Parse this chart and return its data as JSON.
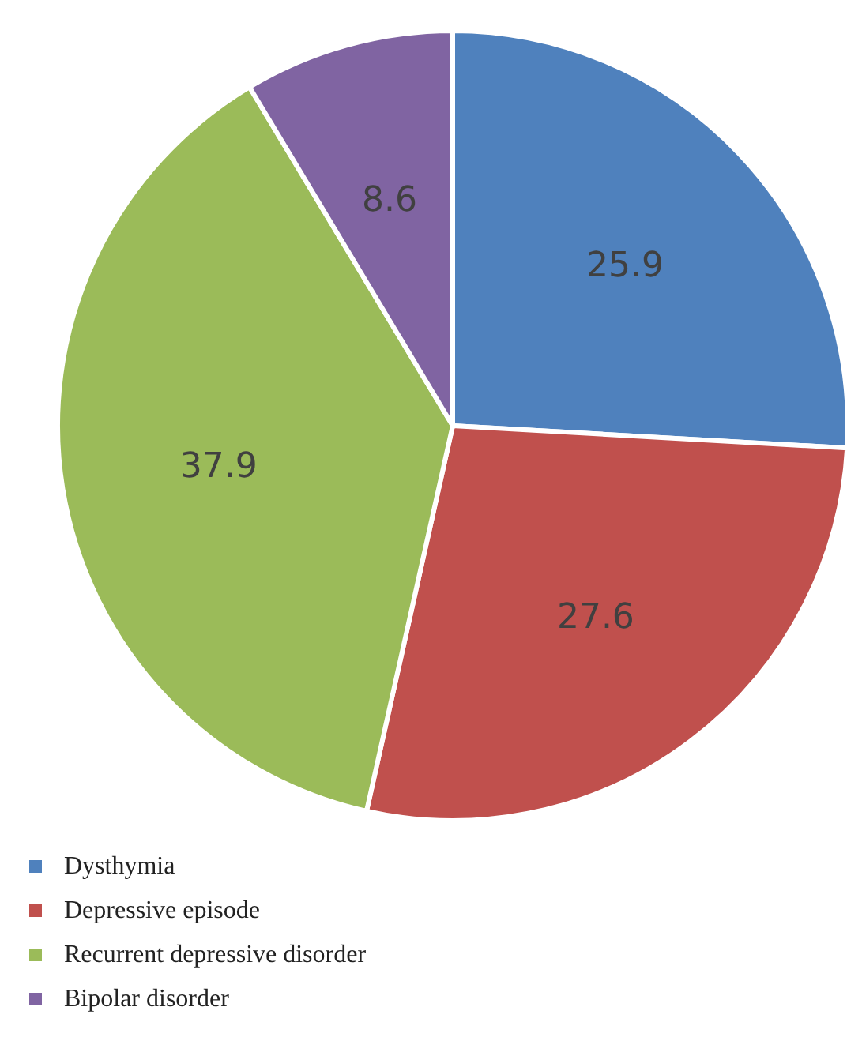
{
  "chart_data": {
    "type": "pie",
    "categories": [
      "Dysthymia",
      "Depressive episode",
      "Recurrent depressive disorder",
      "Bipolar disorder"
    ],
    "values": [
      25.9,
      27.6,
      37.9,
      8.6
    ],
    "colors": [
      "#4f81bd",
      "#c0504d",
      "#9bbb59",
      "#8064a2"
    ],
    "data_labels": true,
    "legend": "bottom left"
  }
}
